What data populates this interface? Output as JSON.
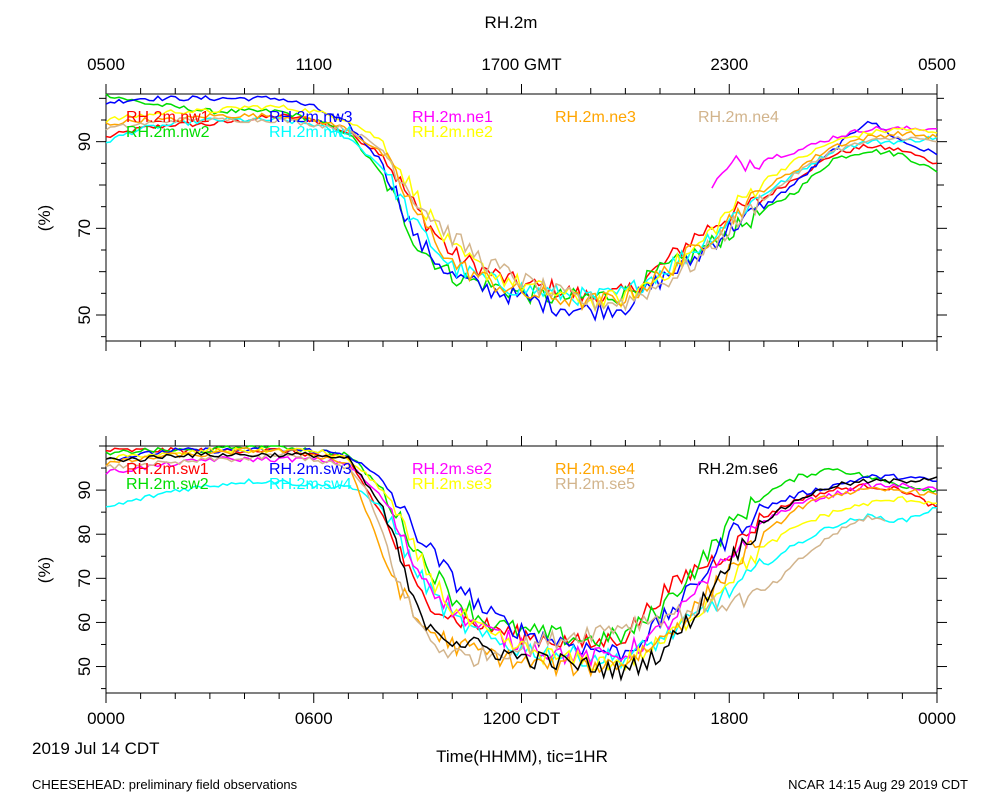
{
  "title": "RH.2m",
  "footer": {
    "left": "CHEESEHEAD: preliminary field observations",
    "right": "NCAR 14:15 Aug 29 2019 CDT"
  },
  "date_label": "2019 Jul 14 CDT",
  "x_axis_title": "Time(HHMM), tic=1HR",
  "top_ticks": [
    "0500",
    "1100",
    "1700 GMT",
    "2300",
    "0500"
  ],
  "bottom_ticks": [
    "0000",
    "0600",
    "1200 CDT",
    "1800",
    "0000"
  ],
  "chart_data": [
    {
      "type": "line",
      "panel": "top",
      "ylabel": "(%)",
      "ylim": [
        44,
        101
      ],
      "yticks": [
        50,
        70,
        90
      ],
      "xlim": [
        0,
        24
      ],
      "legend": [
        [
          "RH.2m.nw1",
          "RH.2m.nw3",
          "RH.2m.ne1",
          "RH.2m.ne3",
          "RH.2m.ne4"
        ],
        [
          "RH.2m.nw2",
          "RH.2m.nw4",
          "RH.2m.ne2"
        ]
      ],
      "series": [
        {
          "name": "RH.2m.nw1",
          "color": "#ff0000",
          "x": [
            0,
            1,
            2,
            3,
            4,
            5,
            6,
            7,
            8,
            9,
            10,
            11,
            12,
            13,
            14,
            15,
            16,
            17,
            18,
            19,
            20,
            21,
            22,
            23,
            24
          ],
          "y": [
            91,
            93,
            94,
            94,
            95,
            96,
            95,
            92,
            87,
            74,
            64,
            60,
            57,
            56,
            54,
            55,
            61,
            68,
            73,
            77,
            82,
            87,
            89,
            88,
            85
          ]
        },
        {
          "name": "RH.2m.nw2",
          "color": "#00dd00",
          "x": [
            0,
            1,
            2,
            3,
            4,
            5,
            6,
            7,
            8,
            9,
            10,
            11,
            12,
            13,
            14,
            15,
            16,
            17,
            18,
            19,
            20,
            21,
            22,
            23,
            24
          ],
          "y": [
            101,
            99,
            98,
            97,
            97,
            97,
            95,
            92,
            82,
            66,
            59,
            57,
            55,
            54,
            54,
            55,
            60,
            64,
            69,
            74,
            79,
            86,
            88,
            87,
            83
          ]
        },
        {
          "name": "RH.2m.nw3",
          "color": "#0000ff",
          "x": [
            0,
            1,
            2,
            3,
            4,
            5,
            6,
            7,
            8,
            9,
            10,
            11,
            12,
            13,
            14,
            15,
            16,
            17,
            18,
            19,
            20,
            21,
            22,
            23,
            24
          ],
          "y": [
            99,
            100,
            100,
            100,
            100,
            100,
            98,
            94,
            85,
            67,
            59,
            56,
            54,
            52,
            51,
            52,
            58,
            63,
            70,
            75,
            81,
            88,
            95,
            90,
            87
          ]
        },
        {
          "name": "RH.2m.nw4",
          "color": "#00ffff",
          "x": [
            0,
            1,
            2,
            3,
            4,
            5,
            6,
            7,
            8,
            9,
            10,
            11,
            12,
            13,
            14,
            15,
            16,
            17,
            18,
            19,
            20,
            21,
            22,
            23,
            24
          ],
          "y": [
            90,
            93,
            94,
            95,
            95,
            95,
            94,
            91,
            84,
            70,
            61,
            58,
            56,
            55,
            54,
            55,
            60,
            65,
            72,
            78,
            83,
            88,
            90,
            90,
            91
          ]
        },
        {
          "name": "RH.2m.ne1",
          "color": "#ff00ff",
          "x": [
            17.5,
            17.8,
            18.2,
            19,
            20,
            21,
            22,
            23,
            24
          ],
          "y": [
            79,
            82,
            85,
            86,
            88,
            91,
            93,
            93,
            93
          ]
        },
        {
          "name": "RH.2m.ne2",
          "color": "#ffff00",
          "x": [
            0,
            1,
            2,
            3,
            4,
            5,
            6,
            7,
            8,
            9,
            10,
            11,
            12,
            13,
            14,
            15,
            16,
            17,
            18,
            19,
            20,
            21,
            22,
            23,
            24
          ],
          "y": [
            95,
            96,
            97,
            97,
            98,
            98,
            97,
            95,
            90,
            77,
            65,
            60,
            57,
            55,
            53,
            54,
            59,
            65,
            74,
            81,
            86,
            90,
            92,
            93,
            92
          ]
        },
        {
          "name": "RH.2m.ne3",
          "color": "#ffa500",
          "x": [
            0,
            1,
            2,
            3,
            4,
            5,
            6,
            7,
            8,
            9,
            10,
            11,
            12,
            13,
            14,
            15,
            16,
            17,
            18,
            19,
            20,
            21,
            22,
            23,
            24
          ],
          "y": [
            94,
            95,
            95,
            96,
            96,
            96,
            95,
            93,
            87,
            73,
            62,
            58,
            55,
            54,
            53,
            54,
            59,
            65,
            72,
            79,
            84,
            89,
            91,
            92,
            91
          ]
        },
        {
          "name": "RH.2m.ne4",
          "color": "#d2b48c",
          "x": [
            0,
            1,
            2,
            3,
            4,
            5,
            6,
            7,
            8,
            9,
            10,
            11,
            12,
            13,
            14,
            15,
            16,
            17,
            18,
            19,
            20,
            21,
            22,
            23,
            24
          ],
          "y": [
            93,
            94,
            95,
            95,
            95,
            95,
            94,
            93,
            88,
            76,
            68,
            62,
            58,
            55,
            53,
            53,
            57,
            62,
            70,
            77,
            83,
            88,
            90,
            91,
            90
          ]
        }
      ]
    },
    {
      "type": "line",
      "panel": "bottom",
      "ylabel": "(%)",
      "ylim": [
        44,
        100
      ],
      "yticks": [
        50,
        60,
        70,
        80,
        90
      ],
      "xlim": [
        0,
        24
      ],
      "legend": [
        [
          "RH.2m.sw1",
          "RH.2m.sw3",
          "RH.2m.se2",
          "RH.2m.se4",
          "RH.2m.se6"
        ],
        [
          "RH.2m.sw2",
          "RH.2m.sw4",
          "RH.2m.se3",
          "RH.2m.se5"
        ]
      ],
      "series": [
        {
          "name": "RH.2m.sw1",
          "color": "#ff0000",
          "x": [
            0,
            1,
            2,
            3,
            4,
            5,
            6,
            7,
            8,
            9,
            10,
            11,
            12,
            13,
            14,
            15,
            16,
            17,
            18,
            19,
            20,
            21,
            22,
            23,
            24
          ],
          "y": [
            99,
            99,
            99,
            99,
            99,
            99,
            98,
            97,
            84,
            67,
            61,
            59,
            57,
            56,
            55,
            57,
            66,
            72,
            76,
            84,
            88,
            90,
            91,
            90,
            86
          ]
        },
        {
          "name": "RH.2m.sw2",
          "color": "#00dd00",
          "x": [
            0,
            1,
            2,
            3,
            4,
            5,
            6,
            7,
            8,
            9,
            10,
            11,
            12,
            13,
            14,
            15,
            16,
            17,
            18,
            19,
            20,
            21,
            22,
            23,
            24
          ],
          "y": [
            98,
            99,
            99,
            99,
            100,
            100,
            99,
            98,
            90,
            76,
            66,
            60,
            58,
            57,
            56,
            57,
            63,
            72,
            82,
            89,
            93,
            95,
            93,
            91,
            90
          ]
        },
        {
          "name": "RH.2m.sw3",
          "color": "#0000ff",
          "x": [
            0,
            1,
            2,
            3,
            4,
            5,
            6,
            7,
            8,
            9,
            10,
            11,
            12,
            13,
            14,
            15,
            16,
            17,
            18,
            19,
            20,
            21,
            22,
            23,
            24
          ],
          "y": [
            97,
            98,
            99,
            99,
            99,
            99,
            99,
            98,
            92,
            80,
            70,
            62,
            58,
            56,
            54,
            53,
            60,
            68,
            80,
            86,
            89,
            91,
            93,
            93,
            92
          ]
        },
        {
          "name": "RH.2m.sw4",
          "color": "#00ffff",
          "x": [
            0,
            1,
            2,
            3,
            4,
            5,
            6,
            7,
            8,
            9,
            10,
            11,
            12,
            13,
            14,
            15,
            16,
            17,
            18,
            19,
            20,
            21,
            22,
            23,
            24
          ],
          "y": [
            86,
            88,
            90,
            91,
            92,
            92,
            91,
            91,
            86,
            71,
            61,
            56,
            54,
            53,
            52,
            52,
            56,
            61,
            67,
            73,
            78,
            82,
            84,
            83,
            86
          ]
        },
        {
          "name": "RH.2m.se2",
          "color": "#ff00ff",
          "x": [
            0,
            1,
            2,
            3,
            4,
            5,
            6,
            7,
            8,
            9,
            10,
            11,
            12,
            13,
            14,
            15,
            16,
            17,
            18,
            19,
            20,
            21,
            22,
            23,
            24
          ],
          "y": [
            94,
            95,
            96,
            97,
            97,
            97,
            97,
            96,
            88,
            72,
            63,
            58,
            55,
            53,
            52,
            53,
            58,
            66,
            75,
            83,
            87,
            89,
            91,
            91,
            90
          ]
        },
        {
          "name": "RH.2m.se3",
          "color": "#ffff00",
          "x": [
            0,
            1,
            2,
            3,
            4,
            5,
            6,
            7,
            8,
            9,
            10,
            11,
            12,
            13,
            14,
            15,
            16,
            17,
            18,
            19,
            20,
            21,
            22,
            23,
            24
          ],
          "y": [
            97,
            98,
            98,
            99,
            99,
            99,
            99,
            97,
            90,
            75,
            63,
            57,
            54,
            52,
            51,
            51,
            55,
            62,
            70,
            77,
            82,
            85,
            87,
            88,
            87
          ]
        },
        {
          "name": "RH.2m.se4",
          "color": "#ffa500",
          "x": [
            0,
            1,
            2,
            3,
            4,
            5,
            6,
            7,
            8,
            9,
            10,
            11,
            12,
            13,
            14,
            15,
            16,
            17,
            18,
            19,
            20,
            21,
            22,
            23,
            24
          ],
          "y": [
            96,
            97,
            98,
            98,
            99,
            99,
            98,
            96,
            75,
            60,
            55,
            53,
            51,
            50,
            50,
            51,
            56,
            63,
            72,
            80,
            86,
            89,
            90,
            90,
            89
          ]
        },
        {
          "name": "RH.2m.se5",
          "color": "#d2b48c",
          "x": [
            0,
            1,
            2,
            3,
            4,
            5,
            6,
            7,
            7.5,
            8,
            8.5,
            9,
            9.5,
            10,
            10.5,
            18.8,
            19.5,
            20,
            21,
            22,
            22.5
          ],
          "y": [
            95,
            96,
            96,
            97,
            97,
            98,
            97,
            95,
            90,
            80,
            68,
            60,
            55,
            53,
            52,
            66,
            70,
            74,
            80,
            84,
            83
          ]
        },
        {
          "name": "RH.2m.se6",
          "color": "#000000",
          "x": [
            0,
            1,
            2,
            3,
            4,
            5,
            6,
            7,
            8,
            9,
            10,
            11,
            12,
            13,
            14,
            15,
            16,
            17,
            18,
            19,
            20,
            21,
            22,
            23,
            24
          ],
          "y": [
            97,
            97,
            98,
            98,
            98,
            98,
            98,
            97,
            86,
            62,
            56,
            54,
            52,
            51,
            50,
            49,
            53,
            62,
            74,
            83,
            88,
            91,
            92,
            92,
            93
          ]
        }
      ]
    }
  ]
}
